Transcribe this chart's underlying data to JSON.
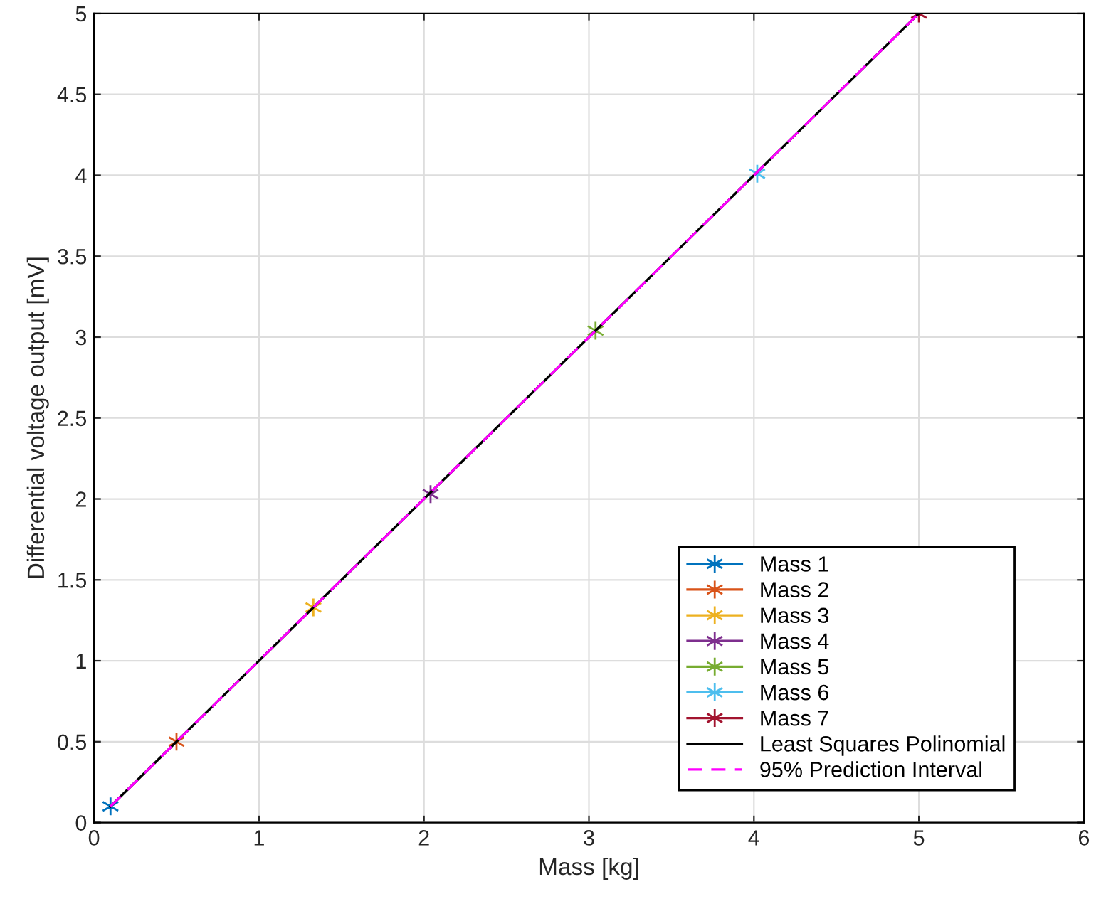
{
  "chart_data": {
    "type": "line",
    "xlabel": "Mass [kg]",
    "ylabel": "Differential voltage output [mV]",
    "xlim": [
      0,
      6
    ],
    "xticks": [
      0,
      1,
      2,
      3,
      4,
      5,
      6
    ],
    "ylim": [
      0,
      5
    ],
    "yticks": [
      0,
      0.5,
      1,
      1.5,
      2,
      2.5,
      3,
      3.5,
      4,
      4.5,
      5
    ],
    "grid": true,
    "legend": "bottom right",
    "marker": "cross",
    "series": [
      {
        "name": "Mass 1",
        "color": "#0072bd",
        "x": [
          0.1
        ],
        "values": [
          0.1
        ]
      },
      {
        "name": "Mass 2",
        "color": "#d95319",
        "x": [
          0.5
        ],
        "values": [
          0.5
        ]
      },
      {
        "name": "Mass 3",
        "color": "#edb120",
        "x": [
          1.33
        ],
        "values": [
          1.33
        ]
      },
      {
        "name": "Mass 4",
        "color": "#7e2f8e",
        "x": [
          2.04
        ],
        "values": [
          2.03
        ]
      },
      {
        "name": "Mass 5",
        "color": "#77ac30",
        "x": [
          3.04
        ],
        "values": [
          3.04
        ]
      },
      {
        "name": "Mass 6",
        "color": "#4dbeee",
        "x": [
          4.02
        ],
        "values": [
          4.01
        ]
      },
      {
        "name": "Mass 7",
        "color": "#a2142f",
        "x": [
          5.0
        ],
        "values": [
          5.0
        ]
      },
      {
        "name": "Least Squares Polinomial",
        "color": "#000000",
        "marker": "none",
        "line_style": "solid",
        "x": [
          0.1,
          5.0
        ],
        "values": [
          0.1,
          5.0
        ]
      },
      {
        "name": "95% Prediction Interval",
        "color": "#ff00ff",
        "marker": "none",
        "line_style": "dashed",
        "x": [
          0.1,
          5.0
        ],
        "values": [
          0.1,
          5.0
        ]
      }
    ]
  }
}
